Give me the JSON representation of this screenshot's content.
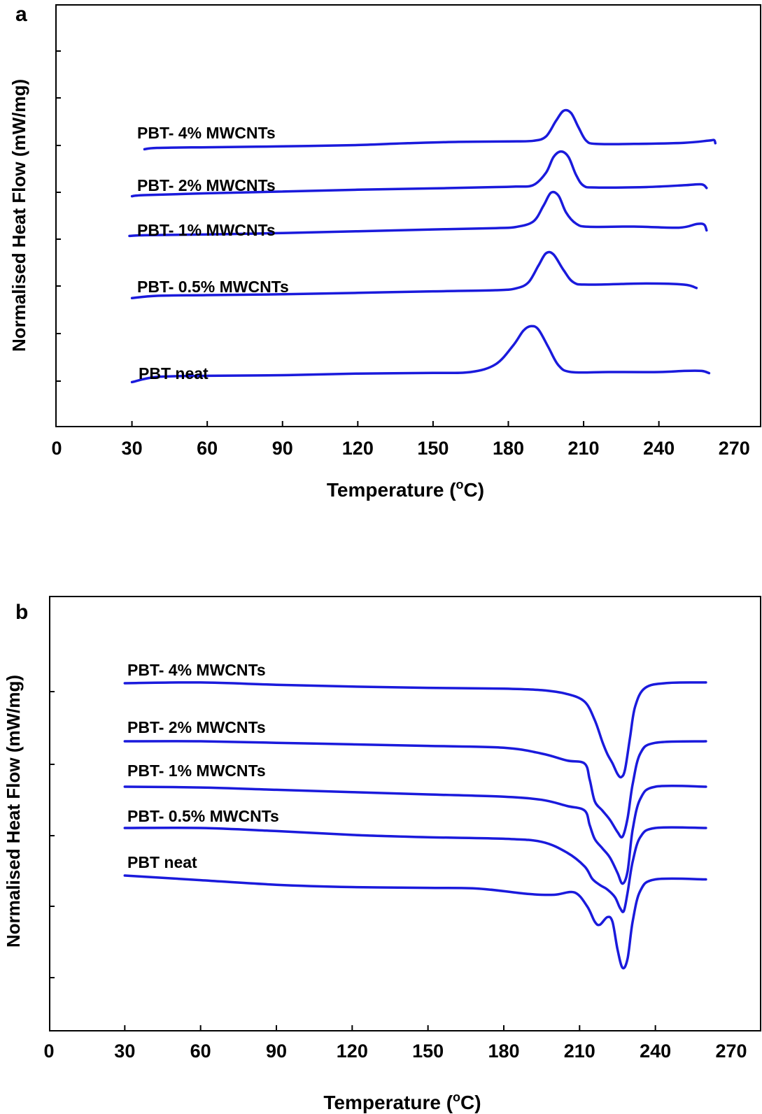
{
  "chart_data": [
    {
      "panel": "a",
      "type": "line",
      "xlabel": "Temperature (°C)",
      "ylabel": "Normalised Heat Flow (mW/mg)",
      "xlim": [
        0,
        270
      ],
      "xticks": [
        "0",
        "30",
        "60",
        "90",
        "120",
        "150",
        "180",
        "210",
        "240",
        "270"
      ],
      "line_color": "#1a1adc",
      "series": [
        {
          "name": "PBT- 4% MWCNTs",
          "offset": 4,
          "points": [
            [
              35,
              0.33
            ],
            [
              40,
              0.39
            ],
            [
              60,
              0.42
            ],
            [
              90,
              0.46
            ],
            [
              120,
              0.52
            ],
            [
              140,
              0.6
            ],
            [
              160,
              0.66
            ],
            [
              180,
              0.68
            ],
            [
              190,
              0.71
            ],
            [
              195,
              0.9
            ],
            [
              199,
              1.6
            ],
            [
              202,
              2.05
            ],
            [
              205,
              1.95
            ],
            [
              208,
              1.3
            ],
            [
              211,
              0.72
            ],
            [
              215,
              0.57
            ],
            [
              230,
              0.57
            ],
            [
              250,
              0.62
            ],
            [
              260,
              0.72
            ],
            [
              262,
              0.74
            ],
            [
              262.5,
              0.6
            ]
          ]
        },
        {
          "name": "PBT- 2% MWCNTs",
          "offset": 3,
          "points": [
            [
              30,
              0.45
            ],
            [
              35,
              0.5
            ],
            [
              60,
              0.58
            ],
            [
              90,
              0.66
            ],
            [
              120,
              0.74
            ],
            [
              150,
              0.8
            ],
            [
              175,
              0.86
            ],
            [
              183,
              0.88
            ],
            [
              190,
              0.95
            ],
            [
              195,
              1.5
            ],
            [
              198,
              2.2
            ],
            [
              201,
              2.45
            ],
            [
              204,
              2.2
            ],
            [
              207,
              1.4
            ],
            [
              210,
              0.92
            ],
            [
              215,
              0.84
            ],
            [
              235,
              0.86
            ],
            [
              250,
              0.94
            ],
            [
              257,
              0.98
            ],
            [
              259,
              0.82
            ]
          ]
        },
        {
          "name": "PBT- 1% MWCNTs",
          "offset": 2,
          "points": [
            [
              29,
              0.55
            ],
            [
              35,
              0.58
            ],
            [
              60,
              0.62
            ],
            [
              90,
              0.68
            ],
            [
              120,
              0.76
            ],
            [
              150,
              0.84
            ],
            [
              175,
              0.9
            ],
            [
              183,
              0.95
            ],
            [
              190,
              1.2
            ],
            [
              194,
              1.9
            ],
            [
              197,
              2.48
            ],
            [
              200,
              2.35
            ],
            [
              203,
              1.6
            ],
            [
              207,
              1.1
            ],
            [
              212,
              0.96
            ],
            [
              230,
              0.97
            ],
            [
              248,
              0.92
            ],
            [
              255,
              1.08
            ],
            [
              258,
              1.06
            ],
            [
              259,
              0.8
            ]
          ]
        },
        {
          "name": "PBT- 0.5% MWCNTs",
          "offset": 1,
          "points": [
            [
              30,
              0.65
            ],
            [
              40,
              0.75
            ],
            [
              60,
              0.78
            ],
            [
              90,
              0.82
            ],
            [
              120,
              0.88
            ],
            [
              150,
              0.95
            ],
            [
              175,
              1.0
            ],
            [
              183,
              1.08
            ],
            [
              188,
              1.35
            ],
            [
              192,
              2.1
            ],
            [
              195,
              2.65
            ],
            [
              198,
              2.6
            ],
            [
              202,
              1.9
            ],
            [
              206,
              1.35
            ],
            [
              212,
              1.25
            ],
            [
              235,
              1.3
            ],
            [
              250,
              1.25
            ],
            [
              255,
              1.1
            ]
          ]
        },
        {
          "name": "PBT neat",
          "offset": 0,
          "points": [
            [
              30,
              0.55
            ],
            [
              40,
              0.78
            ],
            [
              60,
              0.83
            ],
            [
              90,
              0.86
            ],
            [
              120,
              0.93
            ],
            [
              150,
              0.96
            ],
            [
              165,
              1.0
            ],
            [
              175,
              1.35
            ],
            [
              182,
              2.2
            ],
            [
              186,
              2.85
            ],
            [
              189,
              3.05
            ],
            [
              192,
              2.9
            ],
            [
              196,
              2.1
            ],
            [
              200,
              1.3
            ],
            [
              205,
              1.0
            ],
            [
              220,
              1.0
            ],
            [
              240,
              1.0
            ],
            [
              250,
              1.05
            ],
            [
              257,
              1.05
            ],
            [
              260,
              0.95
            ]
          ]
        }
      ]
    },
    {
      "panel": "b",
      "type": "line",
      "xlabel": "Temperature (°C)",
      "ylabel": "Normalised Heat Flow (mW/mg)",
      "xlim": [
        0,
        270
      ],
      "xticks": [
        "0",
        "30",
        "60",
        "90",
        "120",
        "150",
        "180",
        "210",
        "240",
        "270"
      ],
      "line_color": "#1a1adc",
      "series": [
        {
          "name": "PBT- 4% MWCNTs",
          "offset": 4,
          "points": [
            [
              30,
              0
            ],
            [
              60,
              0.05
            ],
            [
              90,
              -0.1
            ],
            [
              120,
              -0.22
            ],
            [
              150,
              -0.3
            ],
            [
              180,
              -0.35
            ],
            [
              195,
              -0.45
            ],
            [
              205,
              -0.7
            ],
            [
              212,
              -1.2
            ],
            [
              216,
              -2.4
            ],
            [
              219,
              -3.8
            ],
            [
              221,
              -4.6
            ],
            [
              223,
              -5.2
            ],
            [
              225,
              -5.9
            ],
            [
              226.5,
              -6.1
            ],
            [
              228,
              -5.6
            ],
            [
              230,
              -3.5
            ],
            [
              232,
              -1.5
            ],
            [
              236,
              -0.3
            ],
            [
              245,
              0.02
            ],
            [
              260,
              0.05
            ]
          ]
        },
        {
          "name": "PBT- 2% MWCNTs",
          "offset": 3,
          "points": [
            [
              30,
              0
            ],
            [
              60,
              0
            ],
            [
              90,
              -0.1
            ],
            [
              120,
              -0.2
            ],
            [
              150,
              -0.3
            ],
            [
              180,
              -0.42
            ],
            [
              195,
              -0.8
            ],
            [
              205,
              -1.25
            ],
            [
              212,
              -1.45
            ],
            [
              214,
              -2.5
            ],
            [
              216,
              -3.9
            ],
            [
              219,
              -4.5
            ],
            [
              222,
              -5.1
            ],
            [
              225,
              -5.9
            ],
            [
              227,
              -6.2
            ],
            [
              229,
              -5.0
            ],
            [
              231,
              -2.8
            ],
            [
              234,
              -0.8
            ],
            [
              240,
              -0.1
            ],
            [
              260,
              0.0
            ]
          ]
        },
        {
          "name": "PBT- 1% MWCNTs",
          "offset": 2,
          "points": [
            [
              30,
              0
            ],
            [
              60,
              -0.05
            ],
            [
              90,
              -0.2
            ],
            [
              120,
              -0.35
            ],
            [
              150,
              -0.5
            ],
            [
              180,
              -0.65
            ],
            [
              195,
              -0.85
            ],
            [
              205,
              -1.25
            ],
            [
              212,
              -1.55
            ],
            [
              214,
              -2.5
            ],
            [
              216,
              -3.4
            ],
            [
              219,
              -4.0
            ],
            [
              222,
              -4.6
            ],
            [
              225,
              -5.6
            ],
            [
              227,
              -6.3
            ],
            [
              229,
              -5.5
            ],
            [
              231,
              -2.8
            ],
            [
              234,
              -0.8
            ],
            [
              240,
              0.0
            ],
            [
              260,
              0.0
            ]
          ]
        },
        {
          "name": "PBT- 0.5% MWCNTs",
          "offset": 1,
          "points": [
            [
              30,
              0
            ],
            [
              60,
              0
            ],
            [
              90,
              -0.2
            ],
            [
              120,
              -0.45
            ],
            [
              150,
              -0.6
            ],
            [
              180,
              -0.7
            ],
            [
              195,
              -0.9
            ],
            [
              205,
              -1.6
            ],
            [
              212,
              -2.5
            ],
            [
              215,
              -3.3
            ],
            [
              218,
              -3.7
            ],
            [
              221,
              -4.0
            ],
            [
              224,
              -4.5
            ],
            [
              226,
              -5.2
            ],
            [
              227.5,
              -5.4
            ],
            [
              229,
              -4.2
            ],
            [
              231,
              -2.2
            ],
            [
              234,
              -0.6
            ],
            [
              240,
              0.0
            ],
            [
              260,
              0.0
            ]
          ]
        },
        {
          "name": "PBT neat",
          "offset": 0,
          "points": [
            [
              30,
              0
            ],
            [
              60,
              -0.3
            ],
            [
              90,
              -0.6
            ],
            [
              120,
              -0.75
            ],
            [
              150,
              -0.8
            ],
            [
              170,
              -0.85
            ],
            [
              190,
              -1.2
            ],
            [
              200,
              -1.25
            ],
            [
              208,
              -1.1
            ],
            [
              213,
              -2.0
            ],
            [
              216,
              -3.0
            ],
            [
              218,
              -3.2
            ],
            [
              221,
              -2.7
            ],
            [
              223,
              -3.0
            ],
            [
              225,
              -4.8
            ],
            [
              227,
              -6.0
            ],
            [
              229,
              -5.4
            ],
            [
              231,
              -3.0
            ],
            [
              234,
              -1.0
            ],
            [
              240,
              -0.25
            ],
            [
              260,
              -0.25
            ]
          ]
        }
      ]
    }
  ]
}
